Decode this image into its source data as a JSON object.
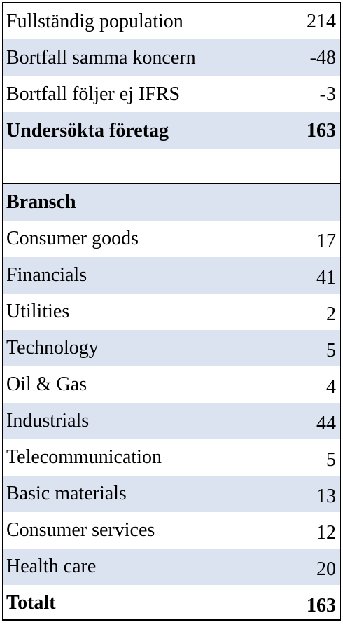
{
  "summary": {
    "rows": [
      {
        "label": "Fullständig population",
        "value": "214"
      },
      {
        "label": "Bortfall samma koncern",
        "value": "-48"
      },
      {
        "label": "Bortfall följer ej IFRS",
        "value": "-3"
      },
      {
        "label": "Undersökta företag",
        "value": "163"
      }
    ]
  },
  "industry": {
    "heading": "Bransch",
    "rows": [
      {
        "label": "Consumer goods",
        "value": "17"
      },
      {
        "label": "Financials",
        "value": "41"
      },
      {
        "label": "Utilities",
        "value": "2"
      },
      {
        "label": "Technology",
        "value": "5"
      },
      {
        "label": "Oil & Gas",
        "value": "4"
      },
      {
        "label": "Industrials",
        "value": "44"
      },
      {
        "label": "Telecommunication",
        "value": "5"
      },
      {
        "label": "Basic materials",
        "value": "13"
      },
      {
        "label": "Consumer services",
        "value": "12"
      },
      {
        "label": "Health care",
        "value": "20"
      }
    ],
    "total": {
      "label": "Totalt",
      "value": "163"
    }
  },
  "colors": {
    "shaded_row": "#dce3f0",
    "border": "#000000"
  }
}
